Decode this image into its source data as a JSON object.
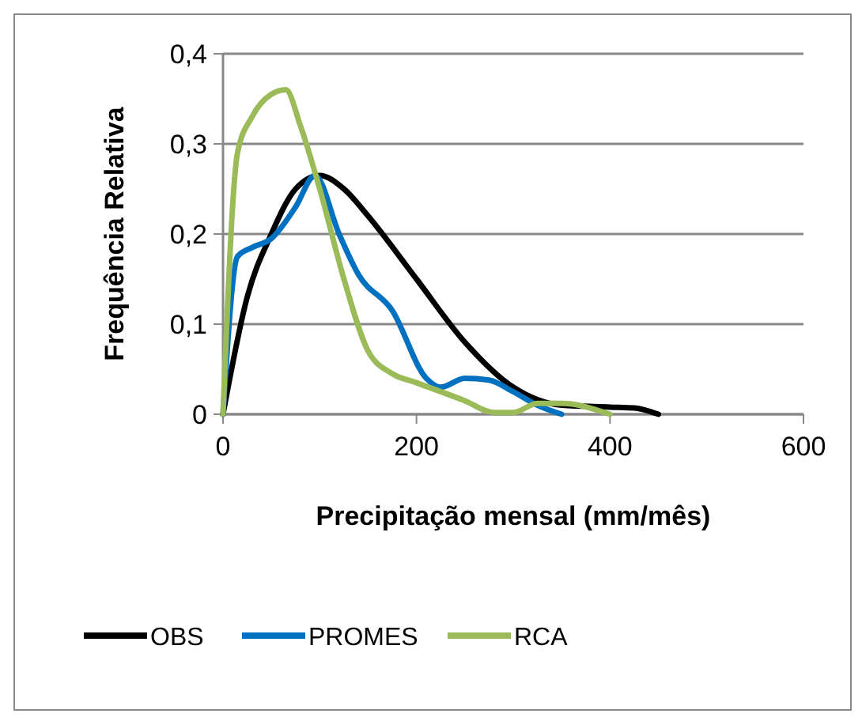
{
  "chart_data": {
    "type": "line",
    "xlabel": "Precipitação mensal (mm/mês)",
    "ylabel": "Frequência Relativa",
    "xlim": [
      0,
      600
    ],
    "xticks": [
      0,
      200,
      400,
      600
    ],
    "ylim": [
      0,
      0.4
    ],
    "yticks": [
      {
        "value": 0,
        "label": "0"
      },
      {
        "value": 0.1,
        "label": "0,1"
      },
      {
        "value": 0.2,
        "label": "0,2"
      },
      {
        "value": 0.3,
        "label": "0,3"
      },
      {
        "value": 0.4,
        "label": "0,4"
      }
    ],
    "grid": "y",
    "legend": "bottom",
    "marker": "none",
    "line_style": "solid",
    "series": [
      {
        "name": "OBS",
        "color": "#000000",
        "x": [
          0,
          25,
          50,
          75,
          100,
          125,
          150,
          200,
          250,
          300,
          350,
          400,
          425,
          450
        ],
        "values": [
          0,
          0.13,
          0.2,
          0.25,
          0.265,
          0.25,
          0.22,
          0.15,
          0.08,
          0.03,
          0.01,
          0.008,
          0.007,
          0
        ]
      },
      {
        "name": "PROMES",
        "color": "#0070c0",
        "x": [
          0,
          15,
          30,
          50,
          75,
          95,
          120,
          140,
          175,
          210,
          225,
          250,
          275,
          300,
          325,
          350
        ],
        "values": [
          0,
          0.175,
          0.185,
          0.195,
          0.23,
          0.265,
          0.2,
          0.155,
          0.115,
          0.04,
          0.03,
          0.04,
          0.038,
          0.025,
          0.01,
          0
        ]
      },
      {
        "name": "RCA",
        "color": "#9bbb59",
        "x": [
          0,
          15,
          30,
          50,
          65,
          80,
          100,
          125,
          150,
          175,
          200,
          250,
          280,
          300,
          325,
          350,
          400
        ],
        "values": [
          0,
          0.29,
          0.33,
          0.355,
          0.36,
          0.32,
          0.25,
          0.15,
          0.07,
          0.045,
          0.035,
          0.015,
          0.002,
          0.002,
          0.012,
          0.012,
          0
        ]
      }
    ]
  }
}
